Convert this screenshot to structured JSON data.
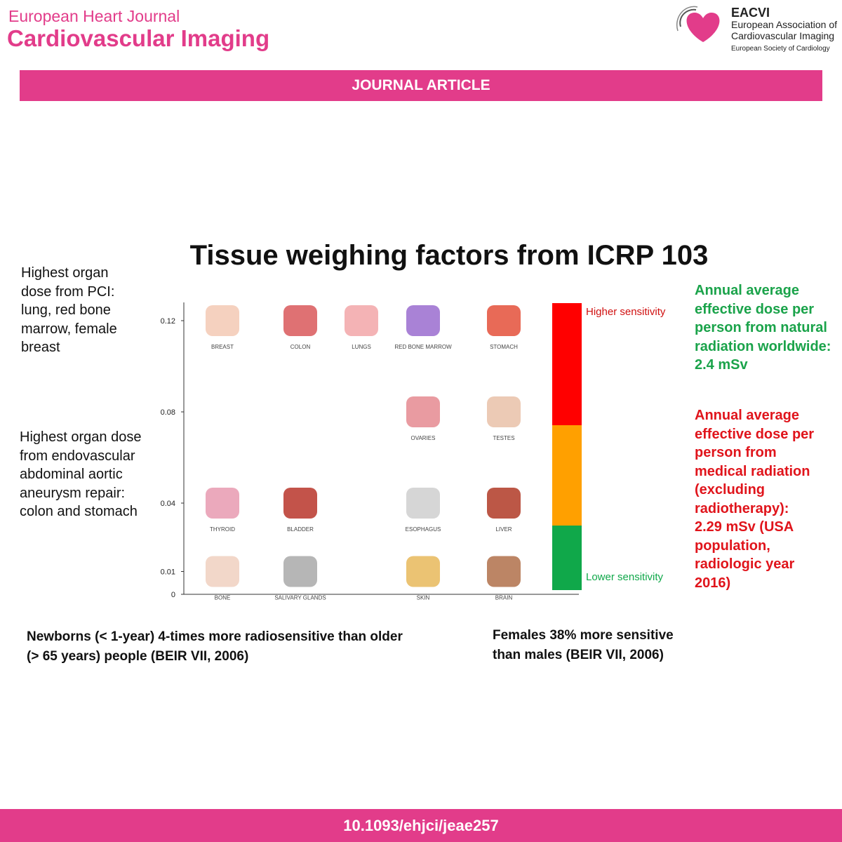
{
  "header": {
    "journal_line1": "European Heart Journal",
    "journal_line2": "Cardiovascular Imaging",
    "society": {
      "acronym": "EACVI",
      "name_line1": "European Association of",
      "name_line2": "Cardiovascular Imaging",
      "parent": "European Society of Cardiology"
    }
  },
  "banner": "JOURNAL ARTICLE",
  "left_notes": [
    "Highest organ dose from PCI: lung, red bone marrow, female breast",
    "Highest organ dose from endovascular abdominal aortic aneurysm repair: colon and stomach"
  ],
  "right_notes": [
    "Annual average effective dose per person from natural radiation worldwide: 2.4 mSv",
    "Annual average effective dose per person from medical radiation (excluding radiotherapy): 2.29 mSv (USA population, radiologic year 2016)"
  ],
  "sensitivity": {
    "high": "Higher sensitivity",
    "low": "Lower sensitivity"
  },
  "chart_data": {
    "type": "scatter",
    "title": "Tissue weighing factors from ICRP 103",
    "categories": [
      "BREAST",
      "COLON",
      "LUNGS",
      "RED BONE MARROW",
      "STOMACH",
      "OVARIES",
      "TESTES",
      "THYROID",
      "BLADDER",
      "ESOPHAGUS",
      "LIVER",
      "BONE",
      "SALIVARY GLANDS",
      "SKIN",
      "BRAIN"
    ],
    "values": [
      0.12,
      0.12,
      0.12,
      0.12,
      0.12,
      0.08,
      0.08,
      0.04,
      0.04,
      0.04,
      0.04,
      0.01,
      0.01,
      0.01,
      0.01
    ],
    "ylim": [
      0,
      0.128
    ],
    "yticks": [
      0,
      0.01,
      0.04,
      0.08,
      0.12
    ]
  },
  "bottom_notes": [
    "Newborns (< 1-year) 4-times more radiosensitive than older (> 65 years) people  (BEIR VII, 2006)",
    "Females 38% more sensitive than males (BEIR VII, 2006)"
  ],
  "footer": "10.1093/ehjci/jeae257"
}
